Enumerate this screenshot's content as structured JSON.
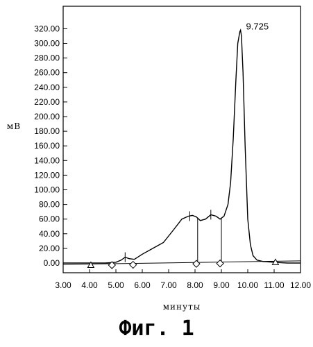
{
  "caption": "Фиг. 1",
  "chart_data": {
    "type": "line",
    "title": "",
    "xlabel": "минуты",
    "ylabel": "мВ",
    "xlim": [
      3.0,
      12.0
    ],
    "ylim": [
      -10,
      330
    ],
    "x_ticks": [
      "3.00",
      "4.00",
      "5.00",
      "6.00",
      "7.00",
      "8.00",
      "9.00",
      "10.00",
      "11.00",
      "12.00"
    ],
    "y_ticks": [
      "0.00",
      "20.00",
      "40.00",
      "60.00",
      "80.00",
      "100.00",
      "120.00",
      "140.00",
      "160.00",
      "180.00",
      "200.00",
      "220.00",
      "240.00",
      "260.00",
      "280.00",
      "300.00",
      "320.00"
    ],
    "series": [
      {
        "x": [
          3.0,
          4.0,
          4.6,
          5.0,
          5.2,
          5.35,
          5.5,
          5.7,
          6.0,
          6.4,
          6.8,
          7.2,
          7.5,
          7.75,
          7.9,
          8.05,
          8.2,
          8.4,
          8.6,
          8.8,
          8.95,
          9.1,
          9.25,
          9.35,
          9.45,
          9.55,
          9.62,
          9.7,
          9.725,
          9.76,
          9.82,
          9.9,
          10.0,
          10.1,
          10.2,
          10.35,
          10.6,
          11.0,
          11.5,
          12.0
        ],
        "y": [
          0,
          0,
          0,
          1,
          4,
          8,
          6,
          5,
          12,
          20,
          28,
          46,
          60,
          64,
          65,
          63,
          58,
          60,
          66,
          64,
          60,
          64,
          80,
          110,
          170,
          250,
          300,
          316,
          318,
          310,
          260,
          160,
          60,
          25,
          10,
          4,
          2,
          1,
          0,
          0
        ]
      }
    ],
    "annotations": [
      {
        "text": "9.725",
        "x": 9.725,
        "y": 318
      }
    ],
    "drop_lines_x": [
      8.1,
      9.0
    ],
    "peak_marks": [
      {
        "x": 5.35,
        "y": 8
      },
      {
        "x": 7.8,
        "y": 64
      },
      {
        "x": 8.6,
        "y": 66
      }
    ],
    "baseline": {
      "x_start": 3.0,
      "x_end": 12.0,
      "y_start": -2,
      "y_end": 3
    },
    "baseline_marks": [
      {
        "shape": "triangle",
        "x": 4.05
      },
      {
        "shape": "diamond",
        "x": 4.85
      },
      {
        "shape": "diamond",
        "x": 5.65
      },
      {
        "shape": "diamond",
        "x": 8.05
      },
      {
        "shape": "diamond",
        "x": 8.95
      },
      {
        "shape": "triangle",
        "x": 11.05
      }
    ]
  }
}
